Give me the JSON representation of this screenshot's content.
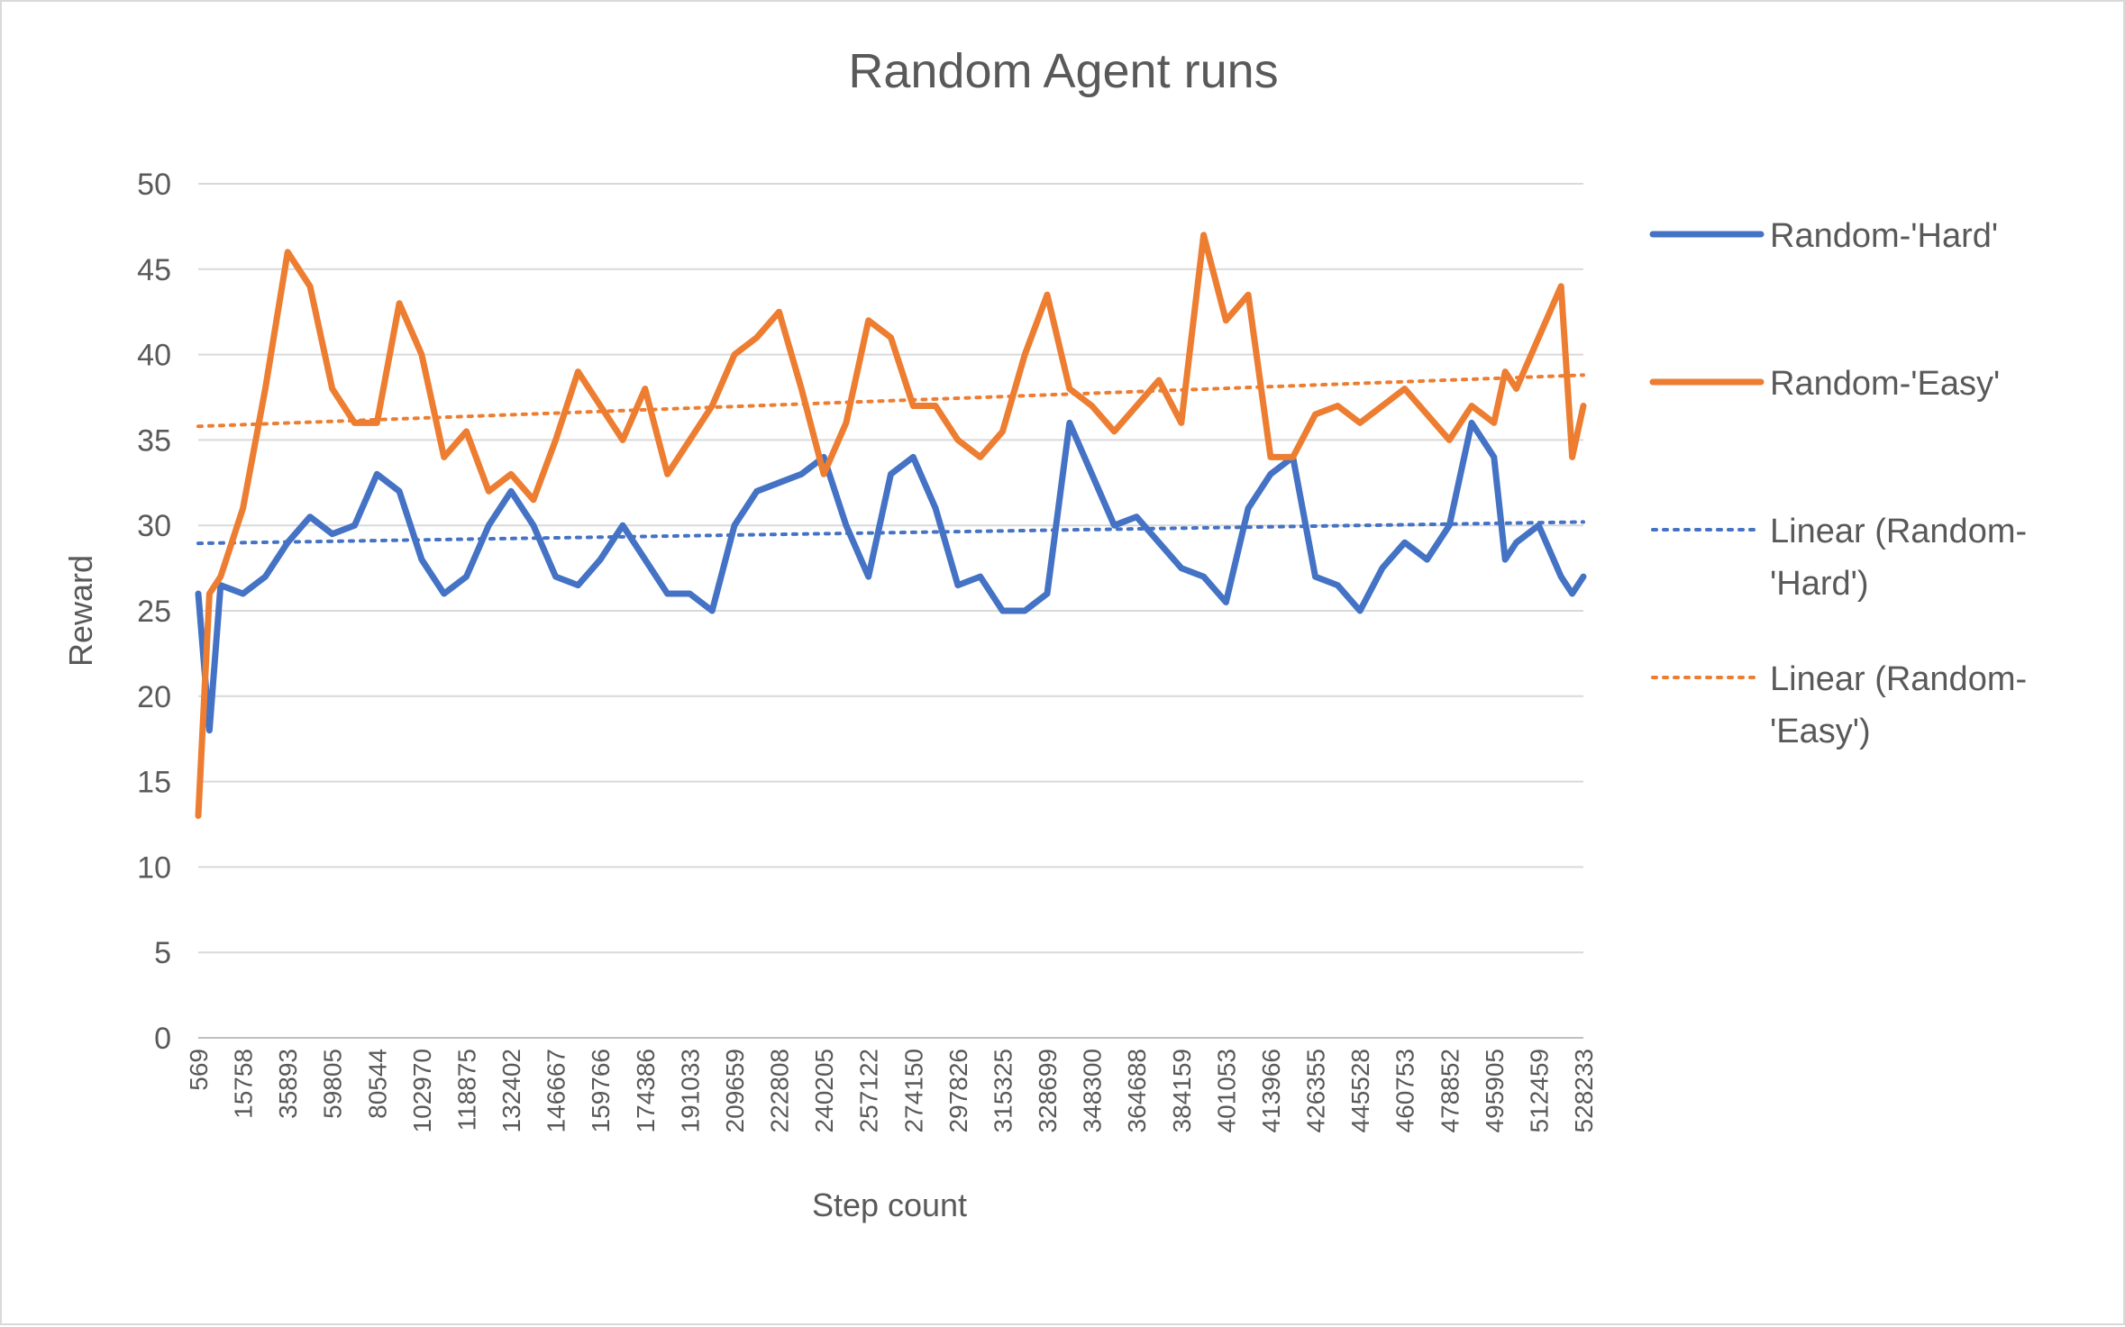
{
  "chart_data": {
    "type": "line",
    "title": "Random Agent runs",
    "xlabel": "Step count",
    "ylabel": "Reward",
    "ylim": [
      0,
      50
    ],
    "yticks": [
      0,
      5,
      10,
      15,
      20,
      25,
      30,
      35,
      40,
      45,
      50
    ],
    "grid": "horizontal",
    "legend_position": "right",
    "x_tick_labels": [
      "569",
      "15758",
      "35893",
      "59805",
      "80544",
      "102970",
      "118875",
      "132402",
      "146667",
      "159766",
      "174386",
      "191033",
      "209659",
      "222808",
      "240205",
      "257122",
      "274150",
      "297826",
      "315325",
      "328699",
      "348300",
      "364688",
      "384159",
      "401053",
      "413966",
      "426355",
      "445528",
      "460753",
      "478852",
      "495905",
      "512459",
      "528233"
    ],
    "x_positions": [
      0,
      2,
      4,
      6,
      8,
      10,
      12,
      14,
      16,
      18,
      20,
      22,
      24,
      26,
      28,
      30,
      32,
      34,
      36,
      38,
      40,
      42,
      44,
      46,
      48,
      50,
      52,
      54,
      56,
      58,
      60,
      62
    ],
    "x": [
      0,
      0.5,
      1,
      2,
      3,
      4,
      5,
      6,
      7,
      8,
      9,
      10,
      11,
      12,
      13,
      14,
      15,
      16,
      17,
      18,
      19,
      20,
      21,
      22,
      23,
      24,
      25,
      26,
      27,
      28,
      29,
      30,
      31,
      32,
      33,
      34,
      35,
      36,
      37,
      38,
      39,
      40,
      41,
      42,
      43,
      44,
      45,
      46,
      47,
      48,
      49,
      50,
      51,
      52,
      53,
      54,
      55,
      56,
      57,
      58,
      58.5,
      59,
      60,
      61,
      61.5,
      62
    ],
    "series": [
      {
        "name": "Random-'Hard'",
        "color": "#4472c4",
        "style": "solid",
        "values": [
          26,
          18,
          26.5,
          26,
          27,
          29,
          30.5,
          29.5,
          30,
          33,
          32,
          28,
          26,
          27,
          30,
          32,
          30,
          27,
          26.5,
          28,
          30,
          28,
          26,
          26,
          25,
          30,
          32,
          32.5,
          33,
          34,
          30,
          27,
          33,
          34,
          31,
          26.5,
          27,
          25,
          25,
          26,
          36,
          33,
          30,
          30.5,
          29,
          27.5,
          27,
          25.5,
          31,
          33,
          34,
          27,
          26.5,
          25,
          27.5,
          29,
          28,
          30,
          36,
          34,
          28,
          29,
          30,
          27,
          26,
          27
        ]
      },
      {
        "name": "Random-'Easy'",
        "color": "#ed7d31",
        "style": "solid",
        "values": [
          13,
          26,
          27,
          31,
          38,
          46,
          44,
          38,
          36,
          36,
          43,
          40,
          34,
          35.5,
          32,
          33,
          31.5,
          35,
          39,
          37,
          35,
          38,
          33,
          35,
          37,
          40,
          41,
          42.5,
          38,
          33,
          36,
          42,
          41,
          37,
          37,
          35,
          34,
          35.5,
          40,
          43.5,
          38,
          37,
          35.5,
          37,
          38.5,
          36,
          47,
          42,
          43.5,
          34,
          34,
          36.5,
          37,
          36,
          37,
          38,
          36.5,
          35,
          37,
          36,
          39,
          38,
          41,
          44,
          34,
          37
        ]
      },
      {
        "name": "Linear (Random-'Hard')",
        "color": "#4472c4",
        "style": "dotted",
        "trend": [
          28.95,
          30.2
        ]
      },
      {
        "name": "Linear (Random-'Easy')",
        "color": "#ed7d31",
        "style": "dotted",
        "trend": [
          35.8,
          38.8
        ]
      }
    ],
    "legend_lines": [
      [
        "Random-'Hard'"
      ],
      [
        "Random-'Easy'"
      ],
      [
        "Linear (Random-",
        "'Hard')"
      ],
      [
        "Linear (Random-",
        "'Easy')"
      ]
    ]
  }
}
